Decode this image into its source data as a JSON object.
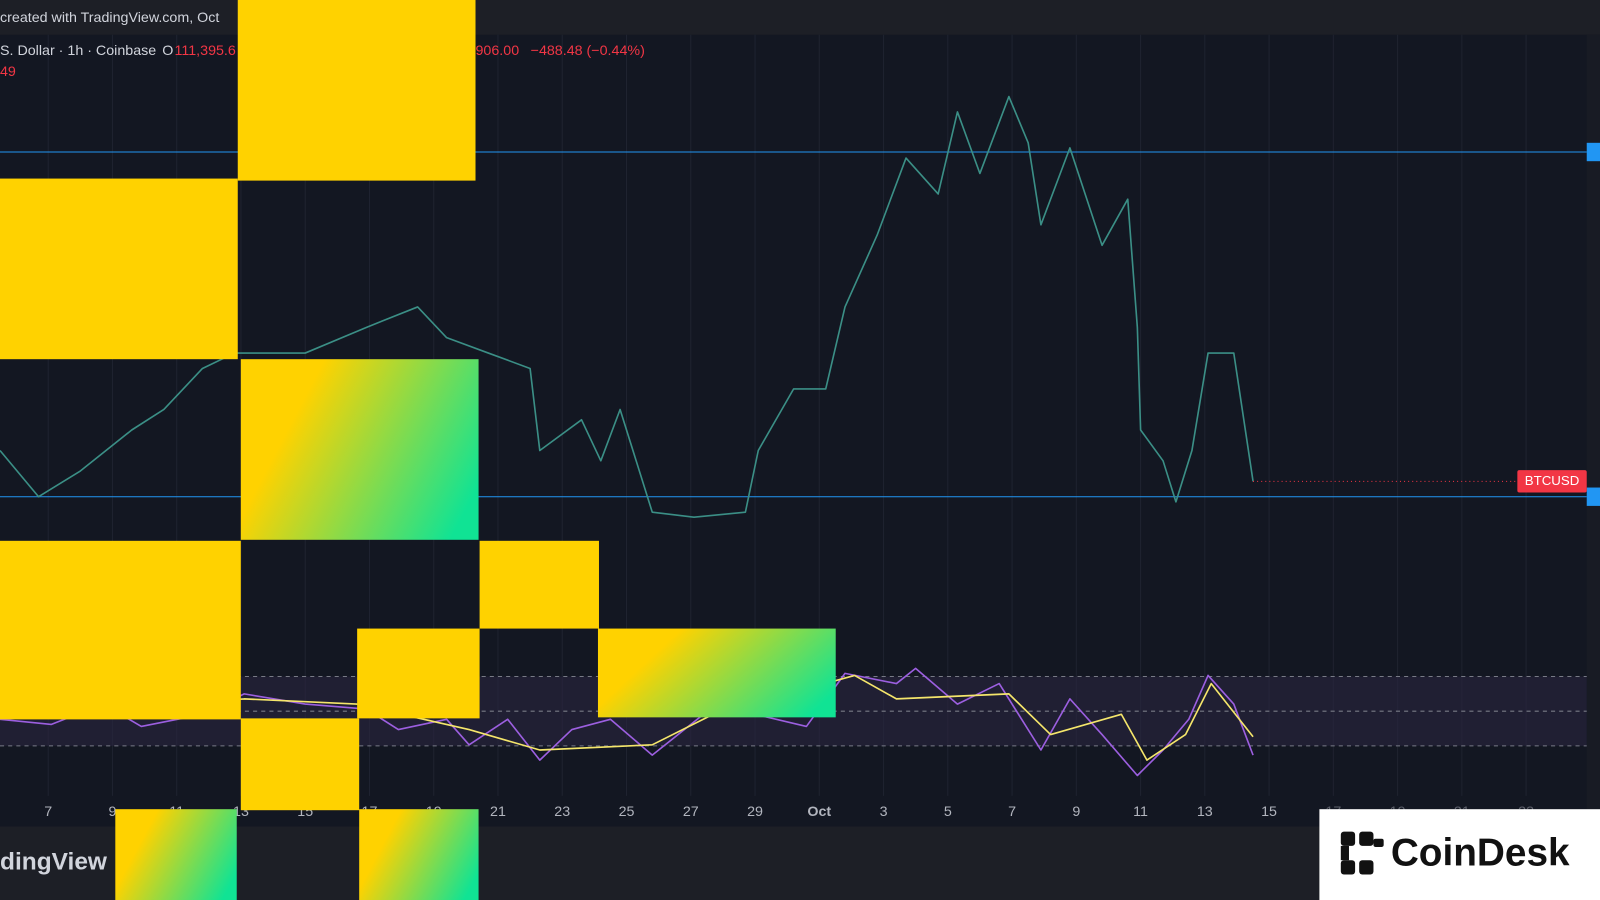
{
  "header": {
    "watermark": "created with TradingView.com, Oct",
    "symbol": "S. Dollar · 1h · Coinbase",
    "open_label": "O",
    "open_value": "111,395.6",
    "close_value": "906.00",
    "change": "−488.48 (−0.44%)",
    "indicator_value": "49"
  },
  "chart_data": [
    {
      "type": "line",
      "xlim": [
        5.5,
        55.3
      ],
      "ylim": [
        104800,
        128900
      ],
      "xticks": [
        7,
        9,
        11,
        13,
        15,
        17,
        19,
        21,
        23,
        25,
        27,
        29,
        {
          "value": 31,
          "label": "Oct"
        },
        {
          "value": 33,
          "label": "3"
        },
        {
          "value": 35,
          "label": "5"
        },
        {
          "value": 37,
          "label": "7"
        },
        {
          "value": 39,
          "label": "9"
        },
        {
          "value": 41,
          "label": "11"
        },
        {
          "value": 43,
          "label": "13"
        },
        {
          "value": 45,
          "label": "15"
        },
        {
          "value": 47,
          "label": "17"
        },
        {
          "value": 49,
          "label": "19"
        },
        {
          "value": 51,
          "label": "21"
        },
        {
          "value": 53,
          "label": "23"
        }
      ],
      "price_label": "BTCUSD",
      "price_label_color": "#f23645",
      "hlines": [
        124140,
        110030
      ],
      "hline_color": "#2196f3",
      "series": [
        {
          "color": "#3b8f86",
          "x": [
            5.5,
            6.7,
            8.0,
            9.6,
            10.6,
            11.8,
            12.8,
            15.0,
            16.9,
            18.5,
            19.4,
            20.7,
            22.0,
            22.3,
            23.6,
            24.2,
            24.8,
            25.8,
            27.1,
            28.7,
            29.1,
            30.2,
            31.2,
            31.8,
            32.8,
            33.7,
            34.7,
            35.3,
            36.0,
            36.9,
            37.5,
            37.9,
            38.8,
            39.8,
            40.6,
            40.9,
            41.0,
            41.7,
            42.1,
            42.6,
            43.1,
            43.9,
            44.5
          ],
          "values": [
            111920,
            110030,
            111080,
            112760,
            113600,
            115280,
            115910,
            115910,
            116960,
            117800,
            116540,
            115910,
            115280,
            111920,
            113180,
            111500,
            113600,
            109400,
            109190,
            109400,
            111920,
            114440,
            114440,
            117800,
            120740,
            123890,
            122420,
            125780,
            123260,
            126410,
            124520,
            121160,
            124310,
            120320,
            122210,
            116960,
            112760,
            111500,
            109820,
            111920,
            115910,
            115910,
            110660
          ]
        }
      ]
    },
    {
      "type": "line",
      "xlim": [
        5.5,
        55.3
      ],
      "ylim": [
        4.1,
        83.5
      ],
      "levels": [
        70,
        50,
        30
      ],
      "band_color": "#2a2440",
      "series": [
        {
          "color": "#9c5fe0",
          "x": [
            5.5,
            7.1,
            8.7,
            9.9,
            11.8,
            13.1,
            15.0,
            16.9,
            17.9,
            19.4,
            20.1,
            21.3,
            22.3,
            23.3,
            24.5,
            25.8,
            27.4,
            29.0,
            30.6,
            31.8,
            33.4,
            34.0,
            35.3,
            36.6,
            37.9,
            38.8,
            39.8,
            40.9,
            41.7,
            42.5,
            43.1,
            43.9,
            44.5
          ],
          "values": [
            45.3,
            42.4,
            54.1,
            41.2,
            48.2,
            60.0,
            54.1,
            51.2,
            39.4,
            45.3,
            30.6,
            45.3,
            21.8,
            39.4,
            45.3,
            24.7,
            48.2,
            48.2,
            41.2,
            71.8,
            65.9,
            74.7,
            54.1,
            65.9,
            27.6,
            57.1,
            36.5,
            12.9,
            27.6,
            45.3,
            70.6,
            54.1,
            24.7
          ]
        },
        {
          "color": "#f5e66b",
          "x": [
            5.5,
            13.1,
            16.6,
            20.1,
            22.3,
            25.8,
            27.7,
            32.1,
            33.4,
            36.9,
            38.2,
            40.4,
            41.2,
            42.4,
            43.2,
            44.5
          ],
          "values": [
            48.2,
            57.1,
            54.1,
            39.4,
            27.6,
            30.6,
            48.2,
            70.6,
            57.1,
            60.0,
            36.5,
            48.2,
            21.8,
            36.5,
            65.9,
            35.3
          ]
        }
      ]
    }
  ],
  "footer": {
    "brand": "dingView",
    "logo": "CoinDesk"
  }
}
